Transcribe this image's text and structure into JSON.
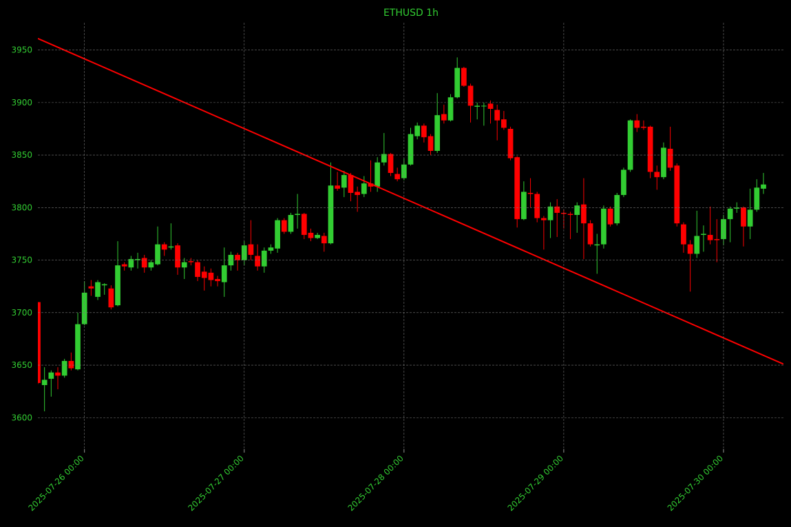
{
  "chart_data": {
    "type": "candlestick",
    "title": "ETHUSD 1h",
    "x": [
      "2025-07-25 17:00",
      "2025-07-25 18:00",
      "2025-07-25 19:00",
      "2025-07-25 20:00",
      "2025-07-25 21:00",
      "2025-07-25 22:00",
      "2025-07-25 23:00",
      "2025-07-26 00:00",
      "2025-07-26 01:00",
      "2025-07-26 02:00",
      "2025-07-26 03:00",
      "2025-07-26 04:00",
      "2025-07-26 05:00",
      "2025-07-26 06:00",
      "2025-07-26 07:00",
      "2025-07-26 08:00",
      "2025-07-26 09:00",
      "2025-07-26 10:00",
      "2025-07-26 11:00",
      "2025-07-26 12:00",
      "2025-07-26 13:00",
      "2025-07-26 14:00",
      "2025-07-26 15:00",
      "2025-07-26 16:00",
      "2025-07-26 17:00",
      "2025-07-26 18:00",
      "2025-07-26 19:00",
      "2025-07-26 20:00",
      "2025-07-26 21:00",
      "2025-07-26 22:00",
      "2025-07-26 23:00",
      "2025-07-27 00:00",
      "2025-07-27 01:00",
      "2025-07-27 02:00",
      "2025-07-27 03:00",
      "2025-07-27 04:00",
      "2025-07-27 05:00",
      "2025-07-27 06:00",
      "2025-07-27 07:00",
      "2025-07-27 08:00",
      "2025-07-27 09:00",
      "2025-07-27 10:00",
      "2025-07-27 11:00",
      "2025-07-27 12:00",
      "2025-07-27 13:00",
      "2025-07-27 14:00",
      "2025-07-27 15:00",
      "2025-07-27 16:00",
      "2025-07-27 17:00",
      "2025-07-27 18:00",
      "2025-07-27 19:00",
      "2025-07-27 20:00",
      "2025-07-27 21:00",
      "2025-07-27 22:00",
      "2025-07-27 23:00",
      "2025-07-28 00:00",
      "2025-07-28 01:00",
      "2025-07-28 02:00",
      "2025-07-28 03:00",
      "2025-07-28 04:00",
      "2025-07-28 05:00",
      "2025-07-28 06:00",
      "2025-07-28 07:00",
      "2025-07-28 08:00",
      "2025-07-28 09:00",
      "2025-07-28 10:00",
      "2025-07-28 11:00",
      "2025-07-28 12:00",
      "2025-07-28 13:00",
      "2025-07-28 14:00",
      "2025-07-28 15:00",
      "2025-07-28 16:00",
      "2025-07-28 17:00",
      "2025-07-28 18:00",
      "2025-07-28 19:00",
      "2025-07-28 20:00",
      "2025-07-28 21:00",
      "2025-07-28 22:00",
      "2025-07-28 23:00",
      "2025-07-29 00:00",
      "2025-07-29 01:00",
      "2025-07-29 02:00",
      "2025-07-29 03:00",
      "2025-07-29 04:00",
      "2025-07-29 05:00",
      "2025-07-29 06:00",
      "2025-07-29 07:00",
      "2025-07-29 08:00",
      "2025-07-29 09:00",
      "2025-07-29 10:00",
      "2025-07-29 11:00",
      "2025-07-29 12:00",
      "2025-07-29 13:00",
      "2025-07-29 14:00",
      "2025-07-29 15:00",
      "2025-07-29 16:00",
      "2025-07-29 17:00",
      "2025-07-29 18:00",
      "2025-07-29 19:00",
      "2025-07-29 20:00",
      "2025-07-29 21:00",
      "2025-07-29 22:00",
      "2025-07-29 23:00",
      "2025-07-30 00:00",
      "2025-07-30 01:00",
      "2025-07-30 02:00",
      "2025-07-30 03:00",
      "2025-07-30 04:00",
      "2025-07-30 05:00",
      "2025-07-30 06:00"
    ],
    "open": [
      3710,
      3631,
      3637,
      3643,
      3640,
      3654,
      3646,
      3689,
      3725,
      3715,
      3726,
      3723,
      3707,
      3746,
      3743,
      3750,
      3752,
      3743,
      3746,
      3765,
      3762,
      3764,
      3743,
      3749,
      3748,
      3739,
      3738,
      3732,
      3729,
      3745,
      3755,
      3750,
      3765,
      3754,
      3744,
      3759,
      3761,
      3788,
      3777,
      3793,
      3794,
      3776,
      3771,
      3773,
      3766,
      3821,
      3819,
      3831,
      3815,
      3813,
      3823,
      3820,
      3843,
      3851,
      3832,
      3828,
      3841,
      3868,
      3878,
      3868,
      3854,
      3889,
      3883,
      3905,
      3933,
      3916,
      3896,
      3897,
      3899,
      3893,
      3884,
      3875,
      3848,
      3789,
      3814,
      3813,
      3790,
      3788,
      3801,
      3795,
      3794,
      3793,
      3803,
      3785,
      3764,
      3765,
      3799,
      3785,
      3812,
      3836,
      3883,
      3877,
      3877,
      3834,
      3829,
      3856,
      3840,
      3784,
      3765,
      3756,
      3774,
      3774,
      3770,
      3770,
      3789,
      3799,
      3800,
      3782,
      3798,
      3818
    ],
    "high": [
      3710,
      3648,
      3645,
      3648,
      3656,
      3662,
      3700,
      3730,
      3731,
      3731,
      3728,
      3726,
      3768,
      3748,
      3754,
      3757,
      3755,
      3750,
      3782,
      3767,
      3785,
      3766,
      3752,
      3752,
      3750,
      3744,
      3742,
      3735,
      3762,
      3758,
      3757,
      3768,
      3788,
      3765,
      3762,
      3765,
      3790,
      3790,
      3795,
      3813,
      3795,
      3780,
      3776,
      3776,
      3843,
      3834,
      3835,
      3833,
      3820,
      3830,
      3845,
      3848,
      3871,
      3852,
      3838,
      3847,
      3876,
      3881,
      3880,
      3870,
      3909,
      3898,
      3908,
      3943,
      3934,
      3918,
      3900,
      3900,
      3902,
      3898,
      3892,
      3877,
      3849,
      3825,
      3828,
      3815,
      3792,
      3805,
      3808,
      3798,
      3796,
      3805,
      3828,
      3788,
      3775,
      3802,
      3801,
      3814,
      3838,
      3884,
      3889,
      3883,
      3878,
      3840,
      3862,
      3877,
      3842,
      3786,
      3769,
      3797,
      3783,
      3801,
      3789,
      3793,
      3801,
      3805,
      3801,
      3818,
      3827,
      3833
    ],
    "low": [
      3632,
      3606,
      3620,
      3627,
      3638,
      3645,
      3645,
      3688,
      3716,
      3712,
      3717,
      3703,
      3706,
      3740,
      3740,
      3742,
      3738,
      3740,
      3745,
      3754,
      3760,
      3736,
      3732,
      3745,
      3730,
      3721,
      3725,
      3725,
      3715,
      3740,
      3740,
      3745,
      3750,
      3740,
      3738,
      3756,
      3757,
      3775,
      3775,
      3780,
      3770,
      3768,
      3770,
      3758,
      3765,
      3816,
      3810,
      3806,
      3796,
      3810,
      3815,
      3815,
      3840,
      3830,
      3825,
      3826,
      3840,
      3865,
      3862,
      3850,
      3852,
      3880,
      3882,
      3904,
      3915,
      3881,
      3884,
      3878,
      3880,
      3864,
      3874,
      3845,
      3781,
      3788,
      3800,
      3786,
      3760,
      3771,
      3772,
      3780,
      3770,
      3776,
      3751,
      3763,
      3737,
      3761,
      3782,
      3783,
      3810,
      3834,
      3872,
      3874,
      3828,
      3817,
      3827,
      3835,
      3782,
      3757,
      3720,
      3752,
      3758,
      3765,
      3748,
      3764,
      3767,
      3795,
      3763,
      3770,
      3796,
      3813
    ],
    "close": [
      3633,
      3636,
      3643,
      3640,
      3654,
      3647,
      3689,
      3719,
      3723,
      3729,
      3727,
      3705,
      3745,
      3744,
      3751,
      3751,
      3743,
      3748,
      3765,
      3760,
      3763,
      3743,
      3748,
      3748,
      3734,
      3733,
      3731,
      3730,
      3745,
      3755,
      3750,
      3764,
      3755,
      3744,
      3759,
      3762,
      3788,
      3777,
      3793,
      3794,
      3774,
      3771,
      3774,
      3766,
      3821,
      3818,
      3831,
      3814,
      3812,
      3823,
      3820,
      3843,
      3851,
      3833,
      3827,
      3841,
      3870,
      3878,
      3867,
      3854,
      3888,
      3883,
      3905,
      3933,
      3916,
      3897,
      3897,
      3897,
      3894,
      3883,
      3876,
      3847,
      3789,
      3815,
      3813,
      3790,
      3788,
      3801,
      3795,
      3794,
      3793,
      3802,
      3785,
      3765,
      3765,
      3799,
      3784,
      3812,
      3836,
      3883,
      3876,
      3876,
      3834,
      3829,
      3857,
      3838,
      3785,
      3765,
      3756,
      3773,
      3775,
      3769,
      3769,
      3789,
      3799,
      3800,
      3782,
      3798,
      3819,
      3822
    ],
    "up_color": "#32cd32",
    "down_color": "#ff0000",
    "trendline": {
      "x": [
        "2025-07-25 17:00",
        "2025-07-30 09:00"
      ],
      "values": [
        3961,
        3651
      ],
      "color": "#ff0000"
    },
    "xlim": [
      "2025-07-25 17:00",
      "2025-07-30 09:00"
    ],
    "xticks": [
      "2025-07-26 00:00",
      "2025-07-27 00:00",
      "2025-07-28 00:00",
      "2025-07-29 00:00",
      "2025-07-30 00:00"
    ],
    "ylim": [
      3570,
      3976
    ],
    "yticks": [
      3600,
      3650,
      3700,
      3750,
      3800,
      3850,
      3900,
      3950
    ],
    "grid": true
  }
}
